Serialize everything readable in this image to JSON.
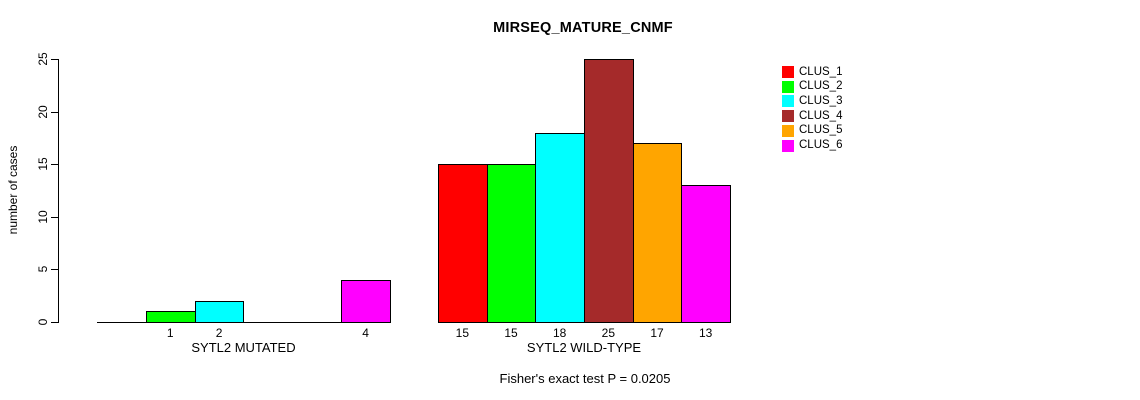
{
  "title": "MIRSEQ_MATURE_CNMF",
  "y_axis": {
    "label": "number of cases",
    "ticks": [
      0,
      5,
      10,
      15,
      20,
      25
    ],
    "max": 25
  },
  "footer": "Fisher's exact test P = 0.0205",
  "legend": {
    "position": "right",
    "items": [
      {
        "label": "CLUS_1",
        "color": "#FF0000"
      },
      {
        "label": "CLUS_2",
        "color": "#00FF00"
      },
      {
        "label": "CLUS_3",
        "color": "#00FFFF"
      },
      {
        "label": "CLUS_4",
        "color": "#A52A2A"
      },
      {
        "label": "CLUS_5",
        "color": "#FFA500"
      },
      {
        "label": "CLUS_6",
        "color": "#FF00FF"
      }
    ]
  },
  "chart_data": {
    "type": "bar",
    "title": "MIRSEQ_MATURE_CNMF",
    "xlabel": "",
    "ylabel": "number of cases",
    "ylim": [
      0,
      25
    ],
    "yticks": [
      0,
      5,
      10,
      15,
      20,
      25
    ],
    "grid": false,
    "legend_position": "right",
    "clusters": [
      "CLUS_1",
      "CLUS_2",
      "CLUS_3",
      "CLUS_4",
      "CLUS_5",
      "CLUS_6"
    ],
    "colors": [
      "#FF0000",
      "#00FF00",
      "#00FFFF",
      "#A52A2A",
      "#FFA500",
      "#FF00FF"
    ],
    "groups": [
      {
        "label": "SYTL2 MUTATED",
        "values": [
          0,
          1,
          2,
          0,
          0,
          4
        ],
        "bar_labels": [
          "",
          "1",
          "2",
          "",
          "",
          "4"
        ]
      },
      {
        "label": "SYTL2 WILD-TYPE",
        "values": [
          15,
          15,
          18,
          25,
          17,
          13
        ],
        "bar_labels": [
          "15",
          "15",
          "18",
          "25",
          "17",
          "13"
        ]
      }
    ],
    "annotation": "Fisher's exact test P = 0.0205"
  }
}
